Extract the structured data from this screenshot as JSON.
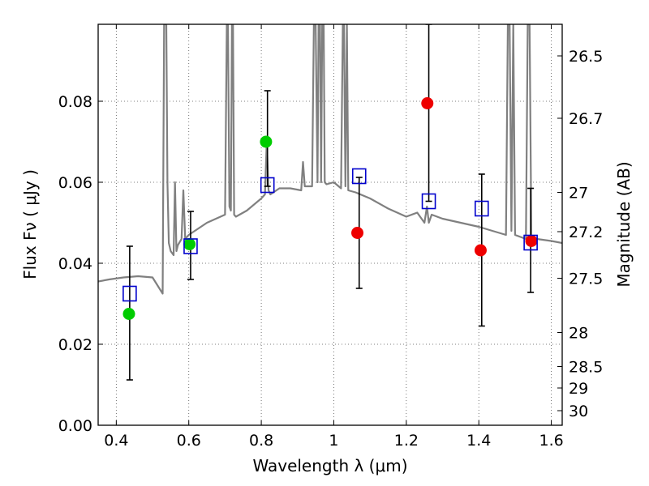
{
  "chart_data": {
    "type": "scatter",
    "title": "",
    "xlabel": "Wavelength  λ (μm)",
    "ylabel": "Flux  Fν  ( μJy )",
    "y2label": "Magnitude (AB)",
    "xlim": [
      0.35,
      1.63
    ],
    "ylim": [
      0.0,
      0.099
    ],
    "grid": true,
    "x_ticks": [
      0.4,
      0.6,
      0.8,
      1.0,
      1.2,
      1.4,
      1.6
    ],
    "x_tick_labels": [
      "0.4",
      "0.6",
      "0.8",
      "1",
      "1.2",
      "1.4",
      "1.6"
    ],
    "y_ticks": [
      0.0,
      0.02,
      0.04,
      0.06,
      0.08
    ],
    "y_tick_labels": [
      "0.00",
      "0.02",
      "0.04",
      "0.06",
      "0.08"
    ],
    "y2_ticks": [
      {
        "label": "26.5",
        "flux": 0.0912
      },
      {
        "label": "26.7",
        "flux": 0.0758
      },
      {
        "label": "27",
        "flux": 0.0575
      },
      {
        "label": "27.2",
        "flux": 0.0478
      },
      {
        "label": "27.5",
        "flux": 0.0363
      },
      {
        "label": "28",
        "flux": 0.0229
      },
      {
        "label": "28.5",
        "flux": 0.0145
      },
      {
        "label": "29",
        "flux": 0.0092
      },
      {
        "label": "30",
        "flux": 0.0036
      }
    ],
    "colors": {
      "model": "#808080",
      "green": "#00cc00",
      "red": "#ee0000",
      "square": "#0000cc",
      "errorbar": "#000000",
      "grid": "#555555"
    },
    "series": [
      {
        "name": "model spectrum",
        "style": "line",
        "x": [
          0.35,
          0.38,
          0.42,
          0.46,
          0.5,
          0.528,
          0.532,
          0.535,
          0.538,
          0.541,
          0.545,
          0.55,
          0.558,
          0.562,
          0.566,
          0.57,
          0.58,
          0.585,
          0.59,
          0.6,
          0.65,
          0.7,
          0.705,
          0.708,
          0.712,
          0.716,
          0.719,
          0.722,
          0.725,
          0.73,
          0.76,
          0.8,
          0.81,
          0.815,
          0.82,
          0.825,
          0.85,
          0.88,
          0.91,
          0.915,
          0.92,
          0.93,
          0.94,
          0.945,
          0.95,
          0.955,
          0.958,
          0.962,
          0.965,
          0.968,
          0.972,
          0.975,
          0.98,
          1.0,
          1.02,
          1.025,
          1.028,
          1.032,
          1.036,
          1.04,
          1.06,
          1.1,
          1.15,
          1.2,
          1.23,
          1.25,
          1.257,
          1.262,
          1.27,
          1.3,
          1.4,
          1.475,
          1.48,
          1.485,
          1.49,
          1.495,
          1.5,
          1.53,
          1.535,
          1.54,
          1.545,
          1.55,
          1.56,
          1.6,
          1.63
        ],
        "y": [
          0.0355,
          0.036,
          0.0365,
          0.0368,
          0.0365,
          0.0325,
          0.099,
          0.099,
          0.099,
          0.06,
          0.045,
          0.043,
          0.042,
          0.06,
          0.043,
          0.0445,
          0.046,
          0.058,
          0.046,
          0.047,
          0.05,
          0.052,
          0.099,
          0.099,
          0.054,
          0.053,
          0.099,
          0.099,
          0.052,
          0.0515,
          0.053,
          0.056,
          0.057,
          0.07,
          0.058,
          0.057,
          0.0585,
          0.0585,
          0.058,
          0.065,
          0.059,
          0.059,
          0.059,
          0.099,
          0.099,
          0.06,
          0.099,
          0.099,
          0.06,
          0.099,
          0.099,
          0.06,
          0.0595,
          0.06,
          0.0585,
          0.099,
          0.099,
          0.059,
          0.099,
          0.058,
          0.0575,
          0.056,
          0.0535,
          0.0515,
          0.0525,
          0.05,
          0.054,
          0.05,
          0.052,
          0.051,
          0.049,
          0.047,
          0.099,
          0.099,
          0.048,
          0.099,
          0.047,
          0.046,
          0.099,
          0.099,
          0.046,
          0.045,
          0.046,
          0.0455,
          0.045
        ]
      },
      {
        "name": "green points",
        "style": "circle",
        "x": [
          0.435,
          0.602,
          0.813
        ],
        "y": [
          0.0275,
          0.0447,
          0.07
        ]
      },
      {
        "name": "red points",
        "style": "circle",
        "x": [
          1.065,
          1.258,
          1.405,
          1.545
        ],
        "y": [
          0.0475,
          0.0795,
          0.0432,
          0.0455
        ]
      },
      {
        "name": "model photometry",
        "style": "square",
        "x": [
          0.437,
          0.605,
          0.817,
          1.07,
          1.262,
          1.408,
          1.543
        ],
        "y": [
          0.0325,
          0.0442,
          0.0593,
          0.0615,
          0.0553,
          0.0535,
          0.0451
        ]
      }
    ],
    "errorbars": [
      {
        "x": 0.437,
        "low": 0.0112,
        "high": 0.0442
      },
      {
        "x": 0.605,
        "low": 0.036,
        "high": 0.0528
      },
      {
        "x": 0.817,
        "low": 0.059,
        "high": 0.0826
      },
      {
        "x": 1.07,
        "low": 0.0338,
        "high": 0.0612
      },
      {
        "x": 1.262,
        "low": 0.0553,
        "high": 0.099
      },
      {
        "x": 1.408,
        "low": 0.0245,
        "high": 0.062
      },
      {
        "x": 1.543,
        "low": 0.0328,
        "high": 0.0585
      }
    ]
  }
}
